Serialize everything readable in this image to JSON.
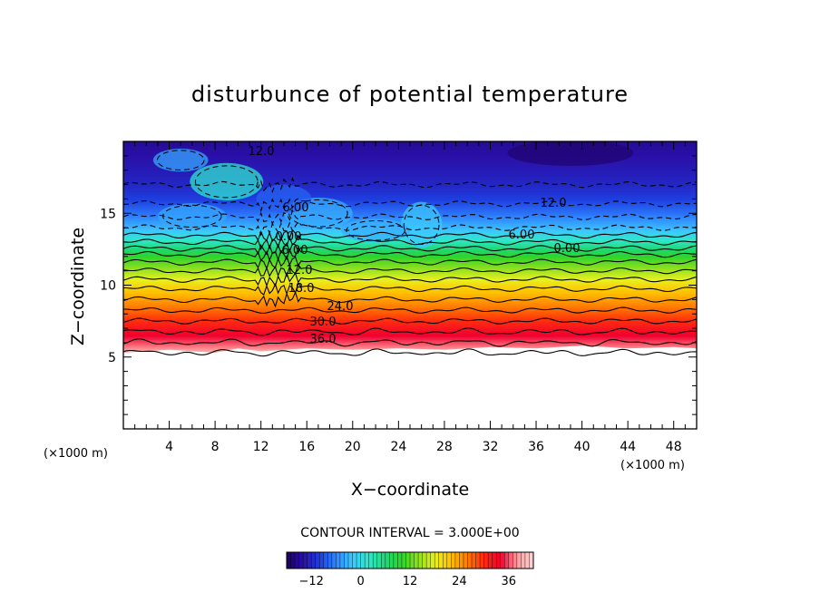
{
  "chart_data": {
    "type": "heatmap",
    "title": "disturbunce of potential temperature",
    "xlabel": "X−coordinate",
    "ylabel": "Z−coordinate",
    "x_unit": "(×1000 m)",
    "y_unit": "(×1000 m)",
    "xlim": [
      0,
      50
    ],
    "ylim": [
      0,
      20
    ],
    "x_ticks": [
      "4",
      "8",
      "12",
      "16",
      "20",
      "24",
      "28",
      "32",
      "36",
      "40",
      "44",
      "48"
    ],
    "y_ticks": [
      "5",
      "10",
      "15"
    ],
    "contour_interval_text": "CONTOUR INTERVAL = 3.000E+00",
    "contour_interval": 3.0,
    "colorbar": {
      "min": -18,
      "max": 42,
      "tick_labels": [
        "−12",
        "0",
        "12",
        "24",
        "36"
      ],
      "colors": [
        "#1c0060",
        "#2a10a8",
        "#1e3ee0",
        "#2f86ff",
        "#3dc8ff",
        "#2ee8c8",
        "#20d878",
        "#2ed42a",
        "#8ee020",
        "#e8f020",
        "#ffc000",
        "#ff7a00",
        "#ff2a10",
        "#f00030",
        "#ff9a9a",
        "#ffd8d8"
      ]
    },
    "contour_labels": [
      "12.0",
      "6.00",
      "0.00",
      "6.00",
      "12.0",
      "18.0",
      "24.0",
      "30.0",
      "36.0",
      "12.0",
      "6.00",
      "0.00"
    ],
    "profile": {
      "z": [
        5.3,
        6.0,
        7.0,
        8.0,
        9.0,
        10.0,
        11.0,
        12.0,
        12.7,
        13.3,
        14.0,
        15.0,
        16.0,
        17.0,
        18.0,
        19.0,
        20.0
      ],
      "theta_disturbance": [
        39,
        36,
        32,
        28,
        24,
        20,
        15,
        10,
        5,
        1,
        -3,
        -7,
        -10,
        -12,
        -13,
        -14,
        -15
      ]
    }
  }
}
